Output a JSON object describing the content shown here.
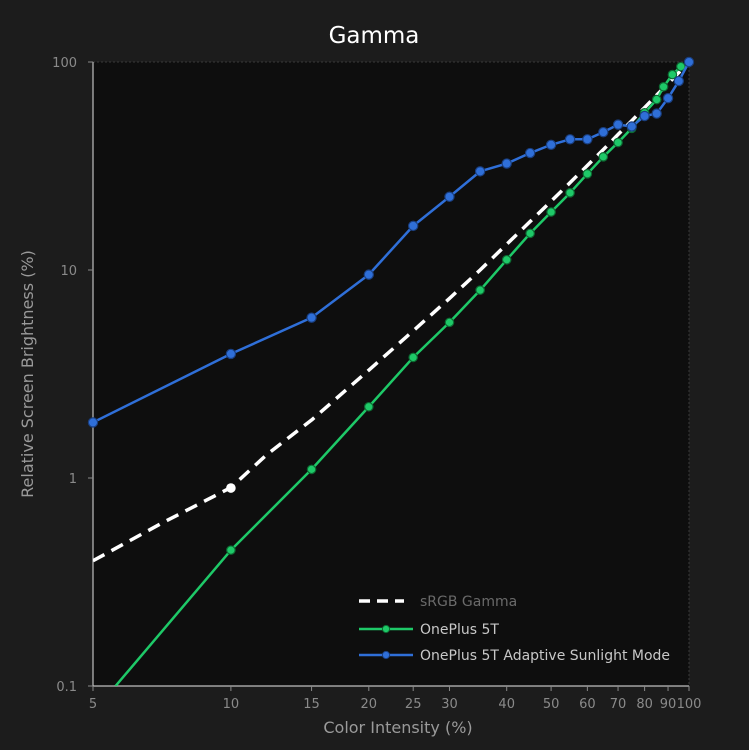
{
  "chart_data": {
    "type": "line",
    "title": "Gamma",
    "xlabel": "Color Intensity (%)",
    "ylabel": "Relative Screen Brightness (%)",
    "x_scale": "log",
    "y_scale": "log",
    "xlim": [
      5,
      100
    ],
    "ylim": [
      0.1,
      100
    ],
    "x_ticks": [
      "5",
      "10",
      "15",
      "20",
      "25",
      "30",
      "40",
      "50",
      "60",
      "70",
      "80",
      "90",
      "100"
    ],
    "y_ticks": [
      "0.1",
      "1",
      "10",
      "100"
    ],
    "legend_position": "bottom-right",
    "series": [
      {
        "name": "sRGB Gamma",
        "color": "#ffffff",
        "style": "dashed",
        "x": [
          5,
          7,
          10,
          12,
          15,
          20,
          25,
          30,
          35,
          40,
          45,
          50,
          55,
          60,
          65,
          70,
          75,
          80,
          85,
          90,
          95,
          100
        ],
        "y": [
          0.4,
          0.6,
          0.9,
          1.3,
          1.9,
          3.3,
          5.1,
          7.3,
          10.0,
          13.3,
          17.1,
          21.4,
          26.3,
          31.8,
          37.9,
          44.8,
          52.2,
          60.4,
          69.3,
          78.7,
          89.0,
          100
        ]
      },
      {
        "name": "OnePlus 5T",
        "color": "#1ec968",
        "style": "solid",
        "x": [
          5.6,
          10,
          15,
          20,
          25,
          30,
          35,
          40,
          45,
          50,
          55,
          60,
          65,
          70,
          75,
          80,
          85,
          88,
          92,
          96,
          100
        ],
        "y": [
          0.1,
          0.45,
          1.1,
          2.2,
          3.8,
          5.6,
          8.0,
          11.2,
          15.0,
          19.0,
          23.5,
          29.0,
          35.0,
          41.0,
          48.0,
          57.0,
          66.0,
          76.0,
          87.0,
          95.0,
          100
        ]
      },
      {
        "name": "OnePlus 5T Adaptive Sunlight Mode",
        "color": "#2f6fd8",
        "style": "solid",
        "x": [
          5,
          10,
          15,
          20,
          25,
          30,
          35,
          40,
          45,
          50,
          55,
          60,
          65,
          70,
          75,
          80,
          85,
          90,
          95,
          100
        ],
        "y": [
          1.85,
          3.95,
          5.9,
          9.5,
          16.3,
          22.5,
          29.8,
          32.5,
          36.5,
          40.0,
          42.5,
          42.5,
          46.0,
          50.0,
          49.0,
          55.0,
          56.5,
          67.0,
          81.0,
          100
        ]
      }
    ]
  }
}
